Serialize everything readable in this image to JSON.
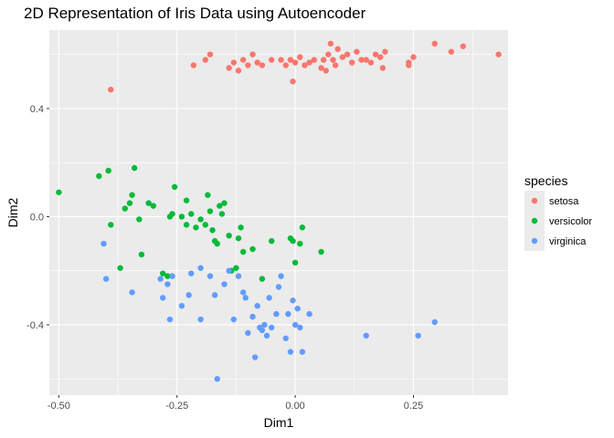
{
  "chart_data": {
    "type": "scatter",
    "title": "2D Representation of Iris Data using Autoencoder",
    "xlabel": "Dim1",
    "ylabel": "Dim2",
    "xlim": [
      -0.52,
      0.45
    ],
    "ylim": [
      -0.66,
      0.69
    ],
    "x_ticks": [
      -0.5,
      -0.25,
      0.0,
      0.25
    ],
    "x_tick_labels": [
      "-0.50",
      "-0.25",
      "0.00",
      "0.25"
    ],
    "y_ticks": [
      -0.4,
      0.0,
      0.4
    ],
    "y_tick_labels": [
      "-0.4",
      "0.0",
      "0.4"
    ],
    "grid": true,
    "legend": {
      "title": "species",
      "position": "right"
    },
    "series": [
      {
        "name": "setosa",
        "color": "#F8766D",
        "points": [
          [
            -0.39,
            0.47
          ],
          [
            -0.215,
            0.56
          ],
          [
            -0.19,
            0.58
          ],
          [
            -0.18,
            0.6
          ],
          [
            -0.14,
            0.55
          ],
          [
            -0.13,
            0.57
          ],
          [
            -0.12,
            0.54
          ],
          [
            -0.11,
            0.58
          ],
          [
            -0.1,
            0.56
          ],
          [
            -0.09,
            0.6
          ],
          [
            -0.08,
            0.57
          ],
          [
            -0.07,
            0.56
          ],
          [
            -0.05,
            0.58
          ],
          [
            -0.03,
            0.58
          ],
          [
            -0.02,
            0.56
          ],
          [
            -0.01,
            0.58
          ],
          [
            -0.005,
            0.5
          ],
          [
            0.0,
            0.57
          ],
          [
            0.01,
            0.59
          ],
          [
            0.02,
            0.56
          ],
          [
            0.03,
            0.57
          ],
          [
            0.04,
            0.58
          ],
          [
            0.055,
            0.55
          ],
          [
            0.06,
            0.58
          ],
          [
            0.065,
            0.54
          ],
          [
            0.07,
            0.6
          ],
          [
            0.075,
            0.64
          ],
          [
            0.08,
            0.58
          ],
          [
            0.085,
            0.56
          ],
          [
            0.09,
            0.62
          ],
          [
            0.1,
            0.59
          ],
          [
            0.11,
            0.6
          ],
          [
            0.12,
            0.57
          ],
          [
            0.13,
            0.61
          ],
          [
            0.14,
            0.58
          ],
          [
            0.15,
            0.58
          ],
          [
            0.16,
            0.57
          ],
          [
            0.17,
            0.6
          ],
          [
            0.18,
            0.59
          ],
          [
            0.185,
            0.55
          ],
          [
            0.19,
            0.61
          ],
          [
            0.24,
            0.56
          ],
          [
            0.24,
            0.57
          ],
          [
            0.25,
            0.59
          ],
          [
            0.295,
            0.64
          ],
          [
            0.33,
            0.61
          ],
          [
            0.355,
            0.63
          ],
          [
            0.43,
            0.6
          ]
        ]
      },
      {
        "name": "versicolor",
        "color": "#00BA38",
        "points": [
          [
            -0.5,
            0.09
          ],
          [
            -0.415,
            0.15
          ],
          [
            -0.395,
            0.17
          ],
          [
            -0.39,
            -0.03
          ],
          [
            -0.37,
            -0.19
          ],
          [
            -0.36,
            0.03
          ],
          [
            -0.35,
            0.05
          ],
          [
            -0.345,
            0.08
          ],
          [
            -0.34,
            0.18
          ],
          [
            -0.33,
            -0.01
          ],
          [
            -0.325,
            -0.14
          ],
          [
            -0.31,
            0.05
          ],
          [
            -0.3,
            0.04
          ],
          [
            -0.28,
            -0.21
          ],
          [
            -0.27,
            -0.22
          ],
          [
            -0.265,
            0.0
          ],
          [
            -0.26,
            0.01
          ],
          [
            -0.255,
            0.11
          ],
          [
            -0.24,
            0.0
          ],
          [
            -0.23,
            0.06
          ],
          [
            -0.23,
            -0.03
          ],
          [
            -0.22,
            0.01
          ],
          [
            -0.21,
            -0.04
          ],
          [
            -0.2,
            -0.01
          ],
          [
            -0.19,
            -0.03
          ],
          [
            -0.185,
            0.08
          ],
          [
            -0.18,
            0.02
          ],
          [
            -0.175,
            -0.05
          ],
          [
            -0.17,
            -0.09
          ],
          [
            -0.165,
            -0.1
          ],
          [
            -0.16,
            0.04
          ],
          [
            -0.155,
            0.01
          ],
          [
            -0.15,
            0.05
          ],
          [
            -0.14,
            -0.07
          ],
          [
            -0.135,
            -0.2
          ],
          [
            -0.125,
            -0.19
          ],
          [
            -0.12,
            -0.08
          ],
          [
            -0.115,
            -0.04
          ],
          [
            -0.11,
            -0.13
          ],
          [
            -0.09,
            -0.12
          ],
          [
            -0.07,
            -0.23
          ],
          [
            -0.05,
            -0.09
          ],
          [
            -0.01,
            -0.08
          ],
          [
            -0.005,
            -0.09
          ],
          [
            0.0,
            -0.17
          ],
          [
            0.01,
            -0.1
          ],
          [
            0.015,
            -0.04
          ],
          [
            0.055,
            -0.13
          ]
        ]
      },
      {
        "name": "virginica",
        "color": "#619CFF",
        "points": [
          [
            -0.405,
            -0.1
          ],
          [
            -0.4,
            -0.23
          ],
          [
            -0.345,
            -0.28
          ],
          [
            -0.285,
            -0.23
          ],
          [
            -0.28,
            -0.3
          ],
          [
            -0.27,
            -0.25
          ],
          [
            -0.265,
            -0.38
          ],
          [
            -0.26,
            -0.22
          ],
          [
            -0.24,
            -0.33
          ],
          [
            -0.225,
            -0.29
          ],
          [
            -0.22,
            -0.21
          ],
          [
            -0.2,
            -0.19
          ],
          [
            -0.2,
            -0.38
          ],
          [
            -0.18,
            -0.22
          ],
          [
            -0.17,
            -0.29
          ],
          [
            -0.165,
            -0.6
          ],
          [
            -0.15,
            -0.25
          ],
          [
            -0.14,
            -0.2
          ],
          [
            -0.13,
            -0.38
          ],
          [
            -0.12,
            -0.22
          ],
          [
            -0.11,
            -0.28
          ],
          [
            -0.105,
            -0.3
          ],
          [
            -0.1,
            -0.43
          ],
          [
            -0.09,
            -0.37
          ],
          [
            -0.085,
            -0.52
          ],
          [
            -0.08,
            -0.33
          ],
          [
            -0.075,
            -0.41
          ],
          [
            -0.07,
            -0.42
          ],
          [
            -0.065,
            -0.4
          ],
          [
            -0.06,
            -0.44
          ],
          [
            -0.055,
            -0.3
          ],
          [
            -0.05,
            -0.41
          ],
          [
            -0.04,
            -0.36
          ],
          [
            -0.035,
            -0.26
          ],
          [
            -0.03,
            -0.22
          ],
          [
            -0.02,
            -0.45
          ],
          [
            -0.015,
            -0.36
          ],
          [
            -0.01,
            -0.5
          ],
          [
            -0.005,
            -0.31
          ],
          [
            0.0,
            -0.4
          ],
          [
            0.005,
            -0.34
          ],
          [
            0.01,
            -0.41
          ],
          [
            0.015,
            -0.5
          ],
          [
            0.03,
            -0.36
          ],
          [
            0.15,
            -0.44
          ],
          [
            0.26,
            -0.44
          ],
          [
            0.295,
            -0.39
          ]
        ]
      }
    ]
  }
}
